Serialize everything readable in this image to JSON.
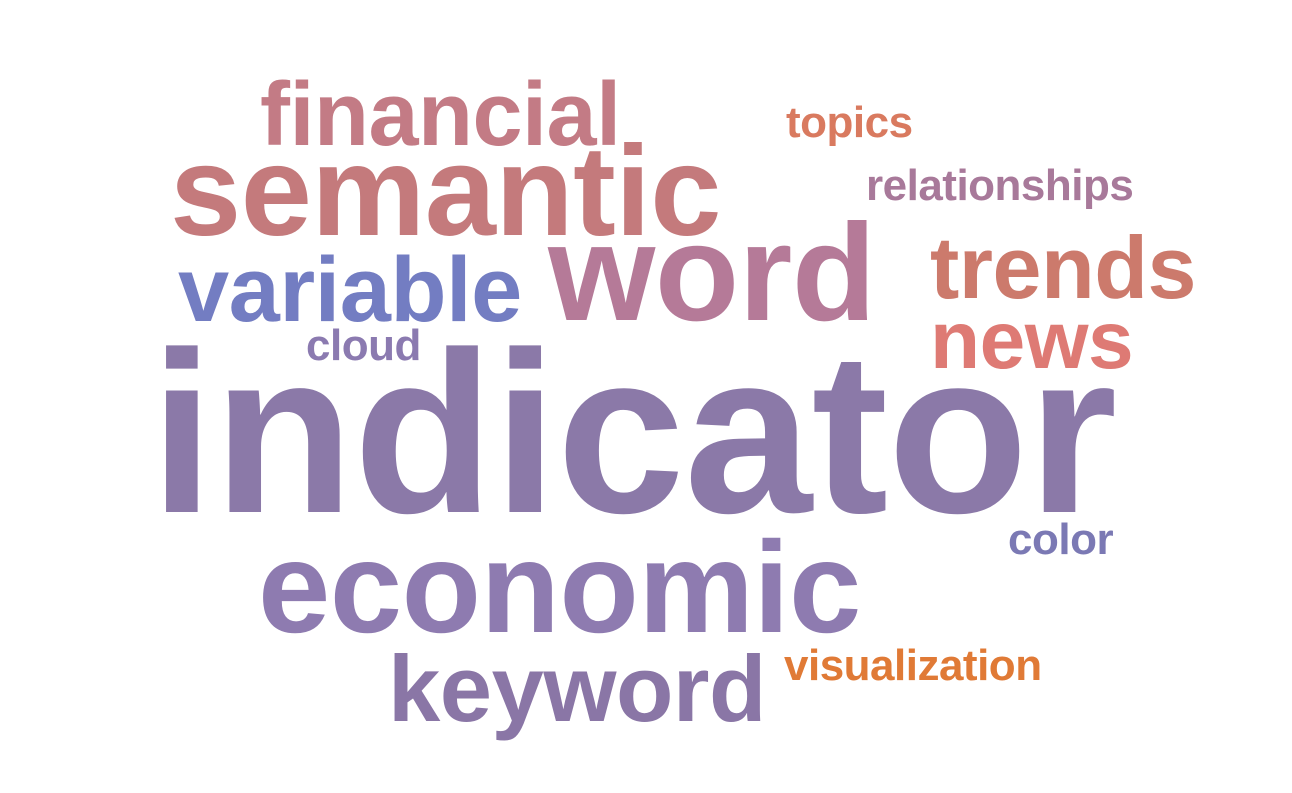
{
  "words": [
    {
      "text": "indicator",
      "color": "#8b79a8"
    },
    {
      "text": "semantic",
      "color": "#c47a7c"
    },
    {
      "text": "word",
      "color": "#b57a98"
    },
    {
      "text": "economic",
      "color": "#8e7bb0"
    },
    {
      "text": "financial",
      "color": "#c37b85"
    },
    {
      "text": "variable",
      "color": "#737dc2"
    },
    {
      "text": "trends",
      "color": "#cc7a6c"
    },
    {
      "text": "news",
      "color": "#de7a74"
    },
    {
      "text": "keyword",
      "color": "#8a76a6"
    },
    {
      "text": "visualization",
      "color": "#e07a36"
    },
    {
      "text": "relationships",
      "color": "#a8799a"
    },
    {
      "text": "topics",
      "color": "#d97a5f"
    },
    {
      "text": "cloud",
      "color": "#8b7ab0"
    },
    {
      "text": "color",
      "color": "#7b79b4"
    }
  ]
}
